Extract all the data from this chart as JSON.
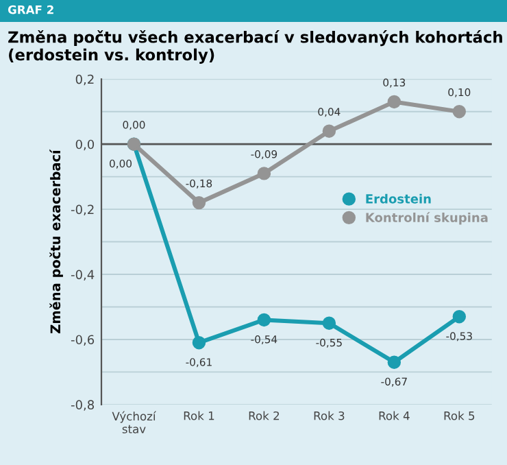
{
  "chart_data": {
    "type": "line",
    "title": "Změna počtu všech exacerbací v sledovaných kohortách (erdostein vs. kontroly)",
    "subtitle": "GRAF 2",
    "ylabel": "Změna počtu exacerbací",
    "categories": [
      "Výchozí\nstav",
      "Rok 1",
      "Rok 2",
      "Rok 3",
      "Rok 4",
      "Rok 5"
    ],
    "series": [
      {
        "name": "Erdostein",
        "color": "#1a9db0",
        "values": [
          0.0,
          -0.61,
          -0.54,
          -0.55,
          -0.67,
          -0.53
        ],
        "value_labels": [
          "0,00",
          "-0,61",
          "-0,54",
          "-0,55",
          "-0,67",
          "-0,53"
        ]
      },
      {
        "name": "Kontrolní skupina",
        "color": "#949494",
        "values": [
          0.0,
          -0.18,
          -0.09,
          0.04,
          0.13,
          0.1
        ],
        "value_labels": [
          "0,00",
          "-0,18",
          "-0,09",
          "0,04",
          "0,13",
          "0,10"
        ]
      }
    ],
    "ylim": [
      -0.8,
      0.2
    ],
    "yticks": [
      {
        "value": -0.8,
        "label": "-0,8"
      },
      {
        "value": -0.7,
        "label": null
      },
      {
        "value": -0.6,
        "label": "-0,6"
      },
      {
        "value": -0.5,
        "label": null
      },
      {
        "value": -0.4,
        "label": "-0,4"
      },
      {
        "value": -0.3,
        "label": null
      },
      {
        "value": -0.2,
        "label": "-0,2"
      },
      {
        "value": -0.1,
        "label": null
      },
      {
        "value": 0.0,
        "label": "0,0"
      },
      {
        "value": 0.1,
        "label": null
      },
      {
        "value": 0.2,
        "label": "0,2"
      }
    ],
    "ref_lines": [
      {
        "axis": "y",
        "value": 0.0,
        "label": null,
        "color": "#555555"
      }
    ],
    "grid": "y",
    "legend": "right",
    "marker": "circle",
    "line_style": "solid"
  }
}
